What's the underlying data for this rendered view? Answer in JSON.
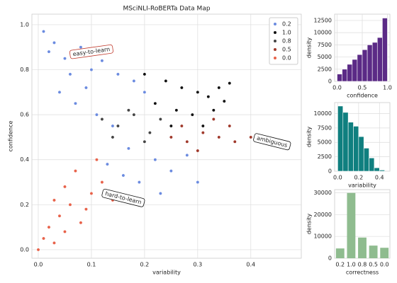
{
  "chart_data": [
    {
      "type": "scatter",
      "title": "MSciNLI-RoBERTa Data Map",
      "xlabel": "variability",
      "ylabel": "confidence",
      "xlim": [
        -0.012,
        0.495
      ],
      "ylim": [
        -0.038,
        1.047
      ],
      "xticks": [
        {
          "value": 0,
          "label": "0.0"
        },
        {
          "value": 0.1,
          "label": "0.1"
        },
        {
          "value": 0.2,
          "label": "0.2"
        },
        {
          "value": 0.3,
          "label": "0.3"
        },
        {
          "value": 0.4,
          "label": "0.4"
        }
      ],
      "yticks": [
        {
          "value": 0,
          "label": "0.0"
        },
        {
          "value": 0.2,
          "label": "0.2"
        },
        {
          "value": 0.4,
          "label": "0.4"
        },
        {
          "value": 0.6,
          "label": "0.6"
        },
        {
          "value": 0.8,
          "label": "0.8"
        },
        {
          "value": 1,
          "label": "1.0"
        }
      ],
      "grid": true,
      "legend": "upper right",
      "annotations": [
        {
          "text": "easy-to-learn",
          "x": 0.1,
          "y": 0.88,
          "color": "#c0392b"
        },
        {
          "text": "ambiguous",
          "x": 0.44,
          "y": 0.48,
          "color": "#111"
        },
        {
          "text": "hard-to-learn",
          "x": 0.16,
          "y": 0.23,
          "color": "#111"
        }
      ],
      "series": [
        {
          "name": "0.2",
          "color": "#6b8be0",
          "x": [
            0.01,
            0.03,
            0.05,
            0.08,
            0.1,
            0.12,
            0.15,
            0.18,
            0.2,
            0.04,
            0.07,
            0.11,
            0.14,
            0.17,
            0.22,
            0.25,
            0.28,
            0.3,
            0.19,
            0.23,
            0.06,
            0.09,
            0.13,
            0.16,
            0.02
          ],
          "values": [
            0.97,
            0.92,
            0.85,
            0.9,
            0.8,
            0.84,
            0.78,
            0.75,
            0.7,
            0.7,
            0.65,
            0.6,
            0.55,
            0.45,
            0.4,
            0.35,
            0.42,
            0.3,
            0.3,
            0.25,
            0.78,
            0.72,
            0.38,
            0.33,
            0.88
          ]
        },
        {
          "name": "1.0",
          "color": "#111111",
          "x": [
            0.2,
            0.24,
            0.27,
            0.3,
            0.32,
            0.34,
            0.36,
            0.29,
            0.26,
            0.22,
            0.31,
            0.33,
            0.35,
            0.25
          ],
          "values": [
            0.78,
            0.75,
            0.72,
            0.7,
            0.68,
            0.72,
            0.74,
            0.6,
            0.62,
            0.65,
            0.55,
            0.62,
            0.66,
            0.55
          ]
        },
        {
          "name": "0.8",
          "color": "#444444",
          "x": [
            0.12,
            0.15,
            0.18,
            0.21,
            0.14,
            0.17,
            0.2,
            0.23
          ],
          "values": [
            0.58,
            0.55,
            0.6,
            0.52,
            0.5,
            0.62,
            0.48,
            0.58
          ]
        },
        {
          "name": "0.5",
          "color": "#a0392b",
          "x": [
            0.25,
            0.28,
            0.31,
            0.34,
            0.37,
            0.4,
            0.3,
            0.27,
            0.33,
            0.36
          ],
          "values": [
            0.5,
            0.48,
            0.52,
            0.5,
            0.48,
            0.5,
            0.44,
            0.55,
            0.58,
            0.55
          ]
        },
        {
          "name": "0.0",
          "color": "#e8624a",
          "x": [
            0.0,
            0.01,
            0.02,
            0.03,
            0.04,
            0.05,
            0.06,
            0.08,
            0.1,
            0.12,
            0.07,
            0.09,
            0.03,
            0.05,
            0.14,
            0.11
          ],
          "values": [
            0.0,
            0.05,
            0.1,
            0.03,
            0.15,
            0.08,
            0.2,
            0.12,
            0.25,
            0.3,
            0.35,
            0.18,
            0.22,
            0.28,
            0.22,
            0.4
          ]
        }
      ]
    },
    {
      "type": "histogram",
      "xlabel": "confidence",
      "ylabel": "density",
      "color": "#5b2a86",
      "bins": [
        0,
        0.1,
        0.2,
        0.3,
        0.4,
        0.5,
        0.6,
        0.7,
        0.8,
        0.9,
        1.0
      ],
      "values": [
        1500,
        2500,
        3500,
        4500,
        5500,
        6500,
        7500,
        8000,
        9000,
        13000
      ],
      "xlim": [
        -0.05,
        1.05
      ],
      "ylim": [
        0,
        13800
      ],
      "xticks": [
        {
          "value": 0,
          "label": "0.0"
        },
        {
          "value": 0.5,
          "label": "0.5"
        },
        {
          "value": 1,
          "label": "1.0"
        }
      ],
      "yticks": [
        0,
        2500,
        5000,
        7500,
        10000,
        12500
      ],
      "grid": true
    },
    {
      "type": "histogram",
      "xlabel": "variability",
      "ylabel": "density",
      "color": "#0f7f7f",
      "bins": [
        0,
        0.05,
        0.1,
        0.15,
        0.2,
        0.25,
        0.3,
        0.35,
        0.4,
        0.45
      ],
      "values": [
        11300,
        10200,
        8500,
        7800,
        6000,
        4000,
        2300,
        600,
        200
      ],
      "xlim": [
        -0.03,
        0.5
      ],
      "ylim": [
        0,
        11900
      ],
      "xticks": [
        {
          "value": 0,
          "label": "0.0"
        },
        {
          "value": 0.2,
          "label": "0.2"
        },
        {
          "value": 0.4,
          "label": "0.4"
        }
      ],
      "yticks": [
        0,
        2500,
        5000,
        7500,
        10000
      ],
      "grid": true
    },
    {
      "type": "bar",
      "xlabel": "correctness",
      "ylabel": "density",
      "color": "#8fbc8f",
      "categories": [
        "0.2",
        "1.0",
        "0.8",
        "0.5",
        "0.0"
      ],
      "values": [
        4500,
        30000,
        9500,
        5800,
        4800
      ],
      "ylim": [
        0,
        31500
      ],
      "yticks": [
        0,
        10000,
        20000,
        30000
      ],
      "grid": true
    }
  ]
}
